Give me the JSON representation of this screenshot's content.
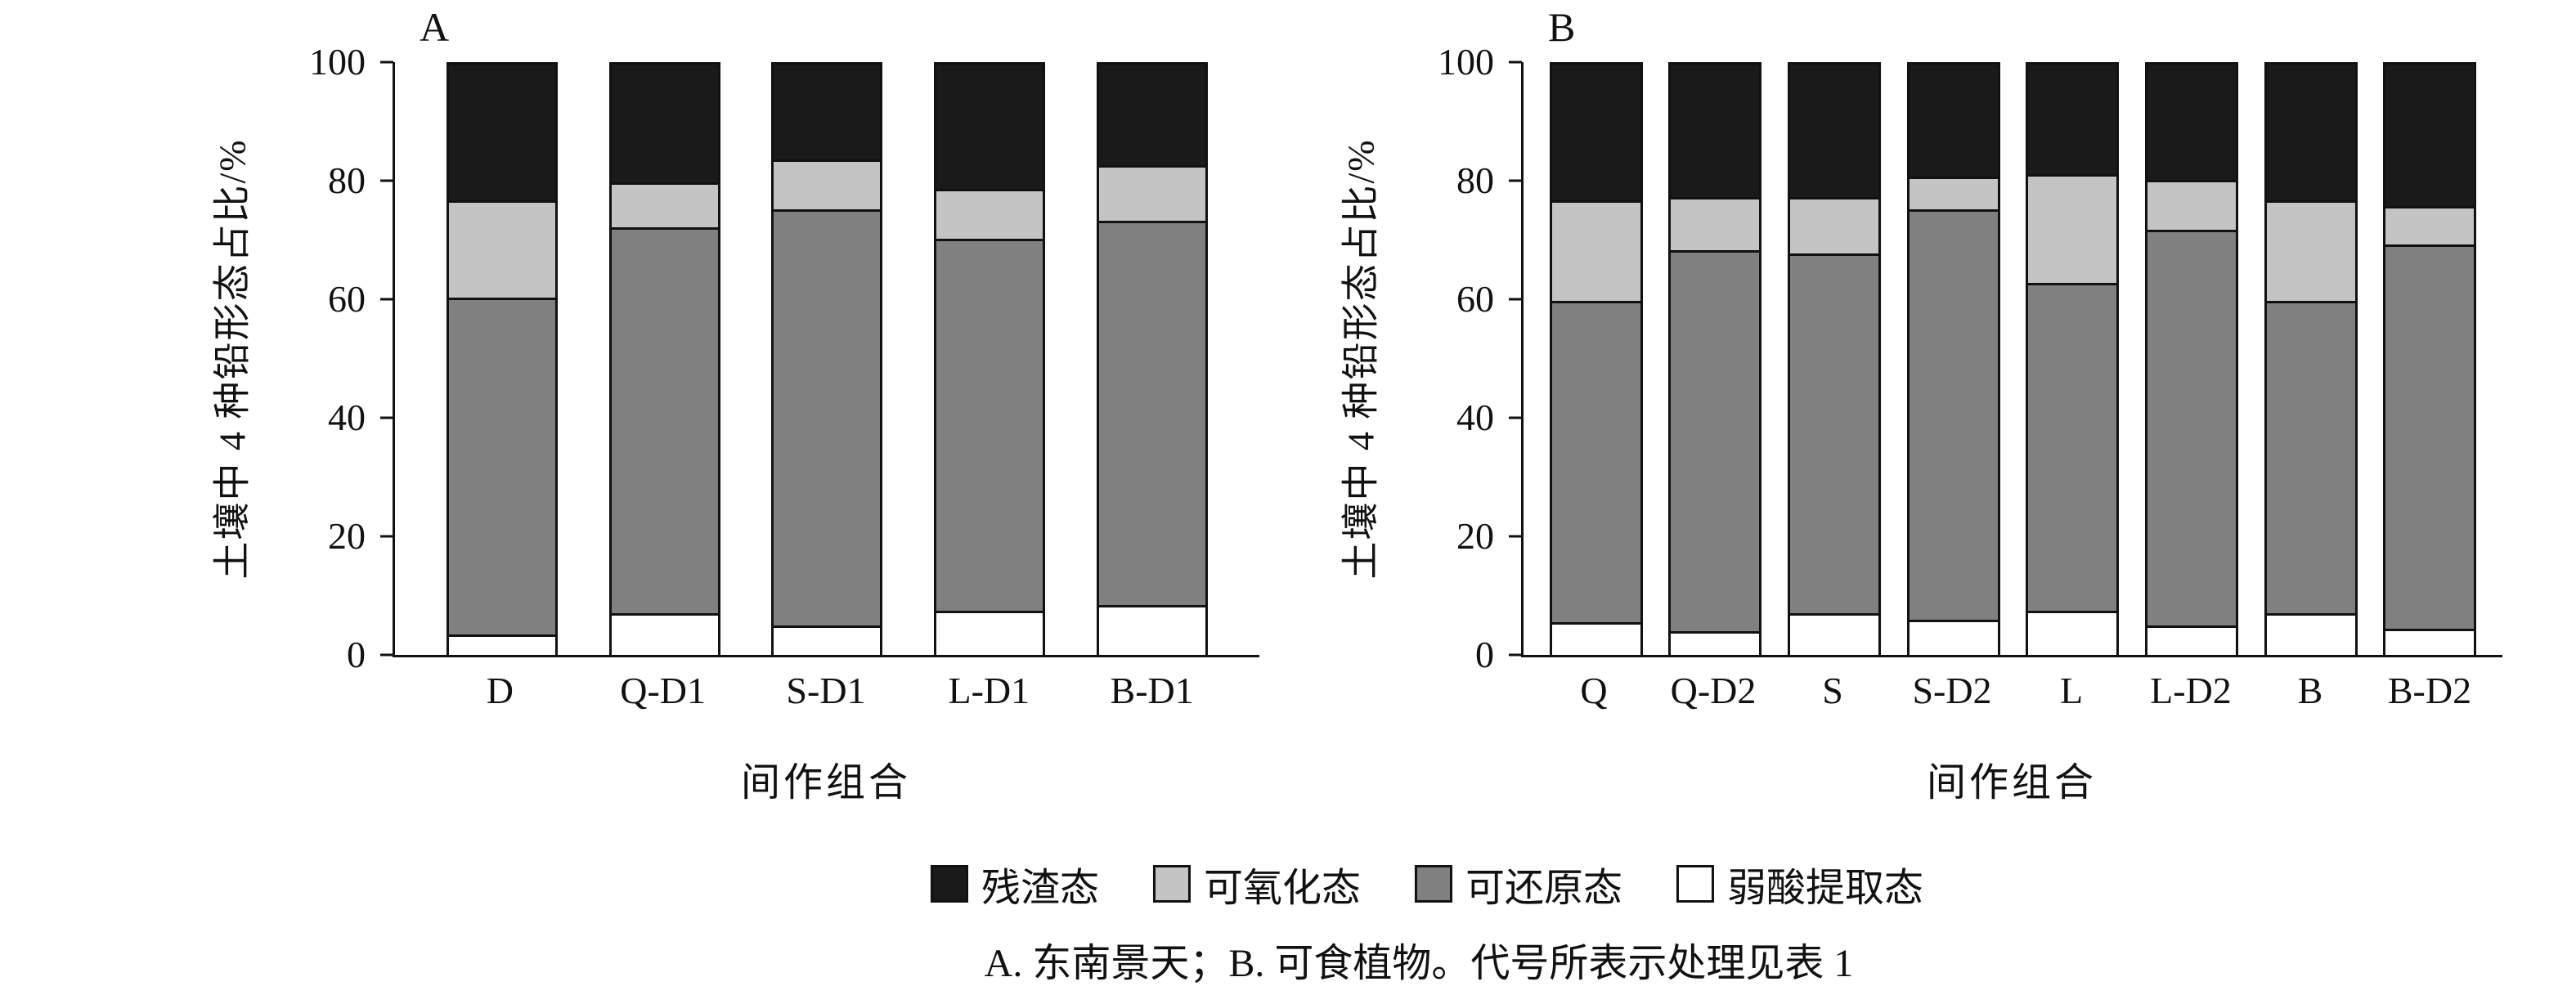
{
  "figure": {
    "caption": "A. 东南景天；B. 可食植物。代号所表示处理见表 1"
  },
  "legend": {
    "items": [
      {
        "label": "残渣态",
        "color": "#1a1a1a"
      },
      {
        "label": "可氧化态",
        "color": "#c4c4c4"
      },
      {
        "label": "可还原态",
        "color": "#808080"
      },
      {
        "label": "弱酸提取态",
        "color": "#ffffff"
      }
    ]
  },
  "chart_data": [
    {
      "type": "bar",
      "stacked": true,
      "panel_label": "A",
      "xlabel": "间作组合",
      "ylabel": "土壤中 4 种铅形态占比/%",
      "ylim": [
        0,
        100
      ],
      "yticks": [
        0,
        20,
        40,
        60,
        80,
        100
      ],
      "grid": false,
      "categories": [
        "D",
        "Q-D1",
        "S-D1",
        "L-D1",
        "B-D1"
      ],
      "series": [
        {
          "name": "弱酸提取态",
          "color": "#ffffff",
          "values": [
            3.5,
            7,
            5,
            7.5,
            8.5
          ]
        },
        {
          "name": "可还原态",
          "color": "#808080",
          "values": [
            57,
            65.5,
            70.5,
            63,
            65
          ]
        },
        {
          "name": "可氧化态",
          "color": "#c4c4c4",
          "values": [
            16.5,
            7.5,
            8.5,
            8.5,
            9.5
          ]
        },
        {
          "name": "残渣态",
          "color": "#1a1a1a",
          "values": [
            23,
            20,
            16,
            21,
            17
          ]
        }
      ]
    },
    {
      "type": "bar",
      "stacked": true,
      "panel_label": "B",
      "xlabel": "间作组合",
      "ylabel": "土壤中 4 种铅形态占比/%",
      "ylim": [
        0,
        100
      ],
      "yticks": [
        0,
        20,
        40,
        60,
        80,
        100
      ],
      "grid": false,
      "categories": [
        "Q",
        "Q-D2",
        "S",
        "S-D2",
        "L",
        "L-D2",
        "B",
        "B-D2"
      ],
      "series": [
        {
          "name": "弱酸提取态",
          "color": "#ffffff",
          "values": [
            5.5,
            4,
            7,
            6,
            7.5,
            5,
            7,
            4.5
          ]
        },
        {
          "name": "可还原态",
          "color": "#808080",
          "values": [
            54.5,
            64.5,
            61,
            69.5,
            55.5,
            67,
            53,
            65
          ]
        },
        {
          "name": "可氧化态",
          "color": "#c4c4c4",
          "values": [
            17,
            9,
            9.5,
            5.5,
            18.5,
            8.5,
            17,
            6.5
          ]
        },
        {
          "name": "残渣态",
          "color": "#1a1a1a",
          "values": [
            23,
            22.5,
            22.5,
            19,
            18.5,
            19.5,
            23,
            24
          ]
        }
      ]
    }
  ]
}
